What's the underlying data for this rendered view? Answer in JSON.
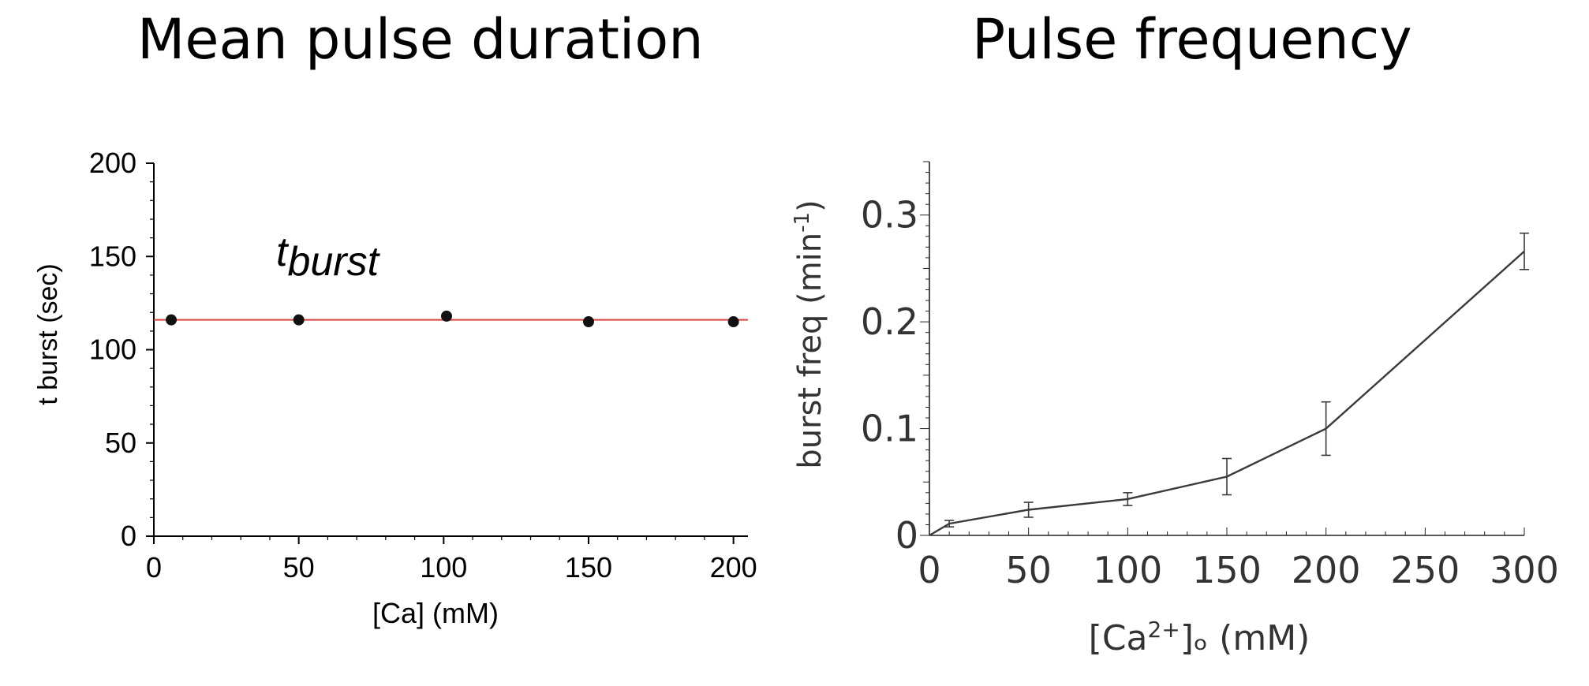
{
  "chart_data": [
    {
      "type": "scatter",
      "title": "Mean pulse duration",
      "annotation_base": "t",
      "annotation_sub": "burst",
      "xlabel": "[Ca] (mM)",
      "ylabel": "t burst (sec)",
      "x_ticks": [
        "0",
        "50",
        "100",
        "150",
        "200"
      ],
      "y_ticks": [
        "0",
        "50",
        "100",
        "150",
        "200"
      ],
      "xlim": [
        0,
        205
      ],
      "ylim": [
        0,
        200
      ],
      "x": [
        6,
        50,
        101,
        150,
        200
      ],
      "y": [
        116,
        116,
        118,
        115,
        115
      ],
      "fit_line_y": 116,
      "colors": {
        "points": "#111111",
        "fit_line": "#d9443f",
        "axes": "#000000"
      }
    },
    {
      "type": "line",
      "title": "Pulse frequency",
      "xlabel": "[Ca2+]o (mM)",
      "xlabel_parts": [
        "[Ca",
        "2+",
        "]ₒ (mM)"
      ],
      "ylabel": "burst freq (min-1)",
      "ylabel_parts": [
        "burst freq (min",
        "-1",
        ")"
      ],
      "x_ticks": [
        "0",
        "50",
        "100",
        "150",
        "200",
        "250",
        "300"
      ],
      "y_ticks": [
        "0",
        "0.1",
        "0.2",
        "0.3"
      ],
      "xlim": [
        0,
        300
      ],
      "ylim": [
        0,
        0.35
      ],
      "x": [
        0,
        10,
        50,
        100,
        150,
        200,
        300
      ],
      "y": [
        0,
        0.011,
        0.024,
        0.034,
        0.055,
        0.1,
        0.266
      ],
      "err": [
        0,
        0.003,
        0.007,
        0.006,
        0.017,
        0.025,
        0.017
      ],
      "colors": {
        "line": "#3a3a3a",
        "axes": "#222222",
        "text": "#333333"
      }
    }
  ]
}
